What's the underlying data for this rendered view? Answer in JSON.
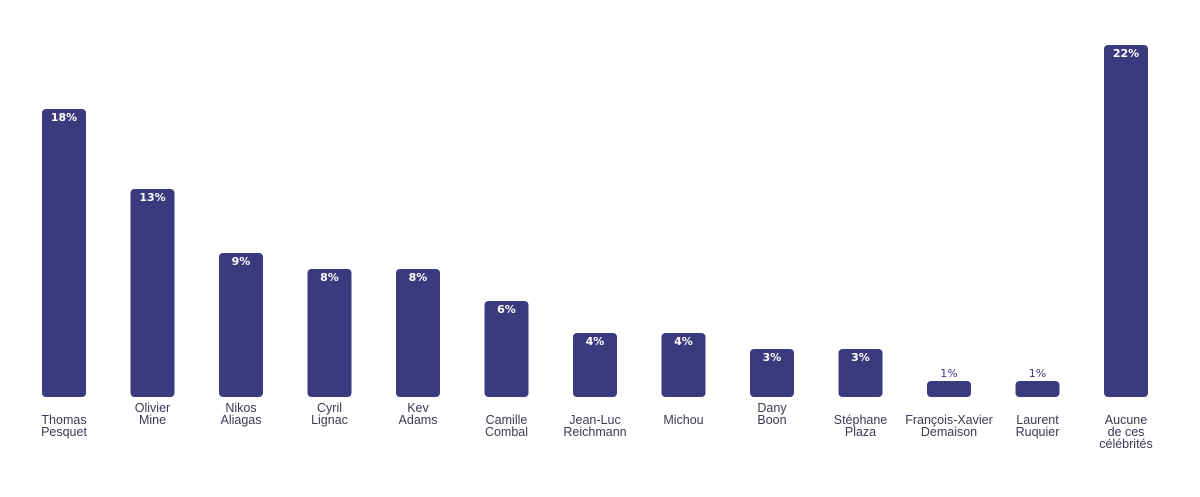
{
  "colors": {
    "bar": "#3b3a7e",
    "bar_label_inside": "#ffffff",
    "bar_label_outside": "#3b3a7e",
    "category_text": "#3a3a52",
    "background": "#ffffff"
  },
  "chart_data": {
    "type": "bar",
    "title": "",
    "xlabel": "",
    "ylabel": "",
    "ylim": [
      0,
      22
    ],
    "grid": false,
    "legend": "none",
    "categories": [
      [
        "Thomas",
        "Pesquet"
      ],
      [
        "Olivier",
        "Mine"
      ],
      [
        "Nikos",
        "Aliagas"
      ],
      [
        "Cyril",
        "Lignac"
      ],
      [
        "Kev",
        "Adams"
      ],
      [
        "Camille",
        "Combal"
      ],
      [
        "Jean-Luc",
        "Reichmann"
      ],
      [
        "Michou"
      ],
      [
        "Dany",
        "Boon"
      ],
      [
        "Stéphane",
        "Plaza"
      ],
      [
        "François-Xavier",
        "Demaison"
      ],
      [
        "Laurent",
        "Ruquier"
      ],
      [
        "Aucune",
        "de ces",
        "célébrités"
      ]
    ],
    "values": [
      18,
      13,
      9,
      8,
      8,
      6,
      4,
      4,
      3,
      3,
      1,
      1,
      22
    ],
    "value_labels": [
      "18%",
      "13%",
      "9%",
      "8%",
      "8%",
      "6%",
      "4%",
      "4%",
      "3%",
      "3%",
      "1%",
      "1%",
      "22%"
    ]
  }
}
